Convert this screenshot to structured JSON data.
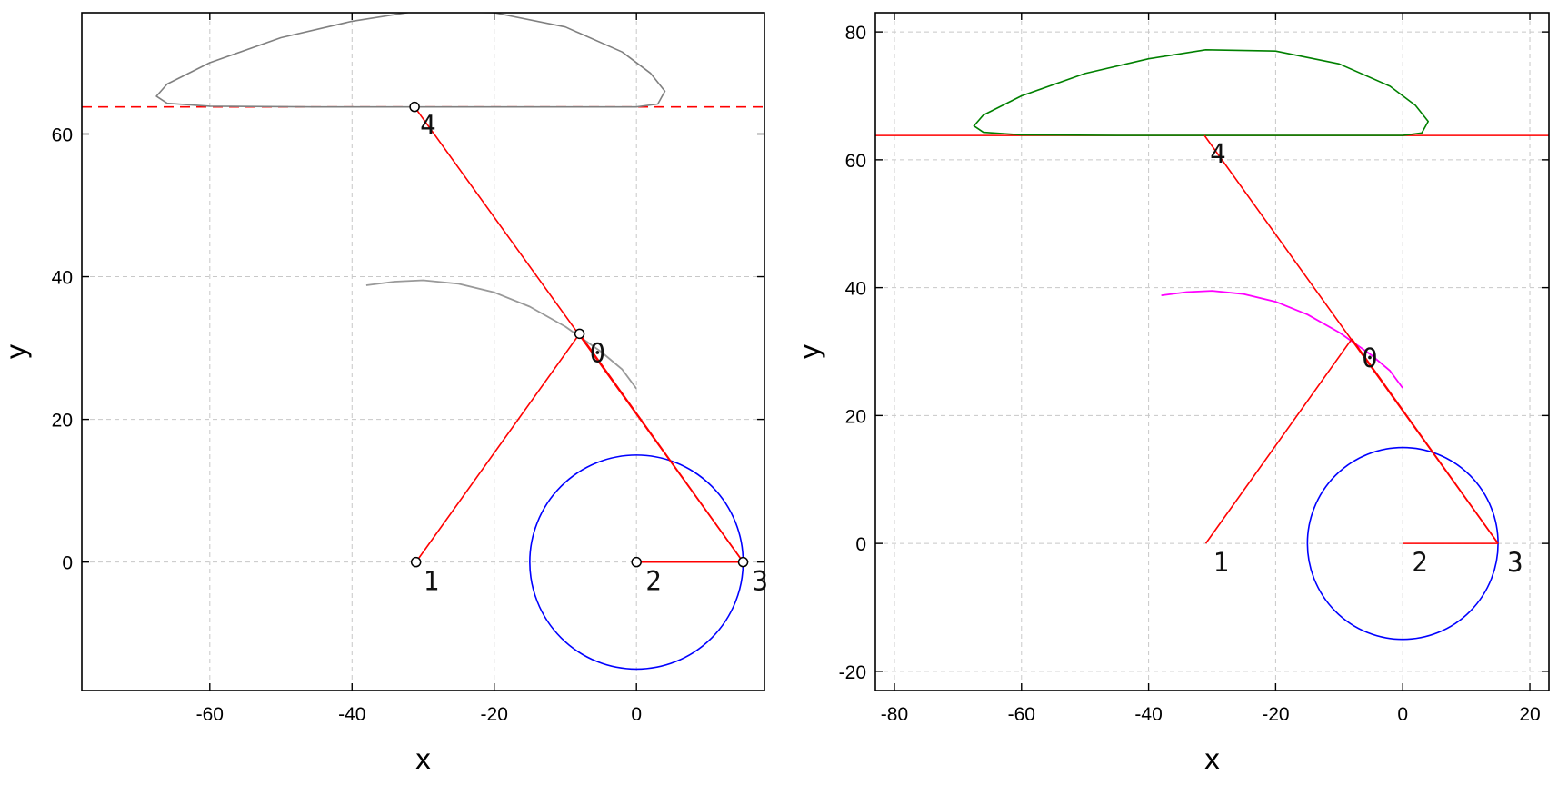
{
  "chart_data": [
    {
      "type": "line",
      "title": "",
      "xlabel": "x",
      "ylabel": "y",
      "xlim": [
        -78,
        18
      ],
      "ylim": [
        -18,
        77
      ],
      "xticks": [
        -60,
        -40,
        -20,
        0
      ],
      "yticks": [
        0,
        20,
        40,
        60
      ],
      "xtick_labels": [
        "-60",
        "-40",
        "-20",
        "0"
      ],
      "ytick_labels": [
        "0",
        "20",
        "40",
        "60"
      ],
      "grid": true,
      "colors": {
        "links": "#ff0000",
        "circle": "#0000ff",
        "upper_curve": "#808080",
        "coupler_curve": "#999999",
        "slider_line": "#ff0000"
      },
      "slider_line": {
        "y": 63.8,
        "style": "dashed"
      },
      "joints": [
        {
          "label": "0",
          "x": -8,
          "y": 32,
          "marker": true
        },
        {
          "label": "1",
          "x": -31,
          "y": 0,
          "marker": true
        },
        {
          "label": "2",
          "x": 0,
          "y": 0,
          "marker": true
        },
        {
          "label": "3",
          "x": 15,
          "y": 0,
          "marker": true
        },
        {
          "label": "4",
          "x": -31.2,
          "y": 63.8,
          "marker": true
        }
      ],
      "links": [
        [
          1,
          0
        ],
        [
          0,
          3
        ],
        [
          3,
          4
        ],
        [
          2,
          3
        ]
      ],
      "circle": {
        "cx": 0,
        "cy": 0,
        "r": 15
      },
      "coupler_curve": [
        [
          -38,
          38.8
        ],
        [
          -34,
          39.3
        ],
        [
          -30,
          39.5
        ],
        [
          -25,
          39.0
        ],
        [
          -20,
          37.8
        ],
        [
          -15,
          35.8
        ],
        [
          -10,
          33.0
        ],
        [
          -5,
          29.5
        ],
        [
          -2,
          27.0
        ],
        [
          0,
          24.3
        ]
      ],
      "upper_curve": [
        [
          -31,
          63.8
        ],
        [
          -45,
          63.8
        ],
        [
          -60,
          63.9
        ],
        [
          -66,
          64.3
        ],
        [
          -67.5,
          65.3
        ],
        [
          -66,
          67.0
        ],
        [
          -60,
          70.0
        ],
        [
          -50,
          73.5
        ],
        [
          -40,
          75.8
        ],
        [
          -31,
          77.2
        ],
        [
          -20,
          77.0
        ],
        [
          -10,
          75.0
        ],
        [
          -2,
          71.5
        ],
        [
          2,
          68.5
        ],
        [
          4,
          66.0
        ],
        [
          3,
          64.2
        ],
        [
          0,
          63.8
        ],
        [
          -15,
          63.8
        ],
        [
          -31,
          63.8
        ]
      ]
    },
    {
      "type": "line",
      "title": "",
      "xlabel": "x",
      "ylabel": "y",
      "xlim": [
        -83,
        23
      ],
      "ylim": [
        -23,
        83
      ],
      "xticks": [
        -80,
        -60,
        -40,
        -20,
        0,
        20
      ],
      "yticks": [
        -20,
        0,
        20,
        40,
        60,
        80
      ],
      "xtick_labels": [
        "-80",
        "-60",
        "-40",
        "-20",
        "0",
        "20"
      ],
      "ytick_labels": [
        "-20",
        "0",
        "20",
        "40",
        "60",
        "80"
      ],
      "grid": true,
      "colors": {
        "links": "#ff0000",
        "circle": "#0000ff",
        "upper_curve": "#008000",
        "coupler_curve": "#ff00ff",
        "slider_line": "#ff0000"
      },
      "slider_line": {
        "y": 63.8,
        "style": "solid"
      },
      "joints": [
        {
          "label": "0",
          "x": -8,
          "y": 32,
          "marker": false
        },
        {
          "label": "1",
          "x": -31,
          "y": 0,
          "marker": false
        },
        {
          "label": "2",
          "x": 0,
          "y": 0,
          "marker": false
        },
        {
          "label": "3",
          "x": 15,
          "y": 0,
          "marker": false
        },
        {
          "label": "4",
          "x": -31.2,
          "y": 63.8,
          "marker": false
        }
      ],
      "links": [
        [
          1,
          0
        ],
        [
          0,
          3
        ],
        [
          3,
          4
        ],
        [
          2,
          3
        ]
      ],
      "circle": {
        "cx": 0,
        "cy": 0,
        "r": 15
      },
      "coupler_curve": [
        [
          -38,
          38.8
        ],
        [
          -34,
          39.3
        ],
        [
          -30,
          39.5
        ],
        [
          -25,
          39.0
        ],
        [
          -20,
          37.8
        ],
        [
          -15,
          35.8
        ],
        [
          -10,
          33.0
        ],
        [
          -5,
          29.5
        ],
        [
          -2,
          27.0
        ],
        [
          0,
          24.3
        ]
      ],
      "upper_curve": [
        [
          -31,
          63.8
        ],
        [
          -45,
          63.8
        ],
        [
          -60,
          63.9
        ],
        [
          -66,
          64.3
        ],
        [
          -67.5,
          65.3
        ],
        [
          -66,
          67.0
        ],
        [
          -60,
          70.0
        ],
        [
          -50,
          73.5
        ],
        [
          -40,
          75.8
        ],
        [
          -31,
          77.2
        ],
        [
          -20,
          77.0
        ],
        [
          -10,
          75.0
        ],
        [
          -2,
          71.5
        ],
        [
          2,
          68.5
        ],
        [
          4,
          66.0
        ],
        [
          3,
          64.2
        ],
        [
          0,
          63.8
        ],
        [
          -15,
          63.8
        ],
        [
          -31,
          63.8
        ]
      ]
    }
  ]
}
